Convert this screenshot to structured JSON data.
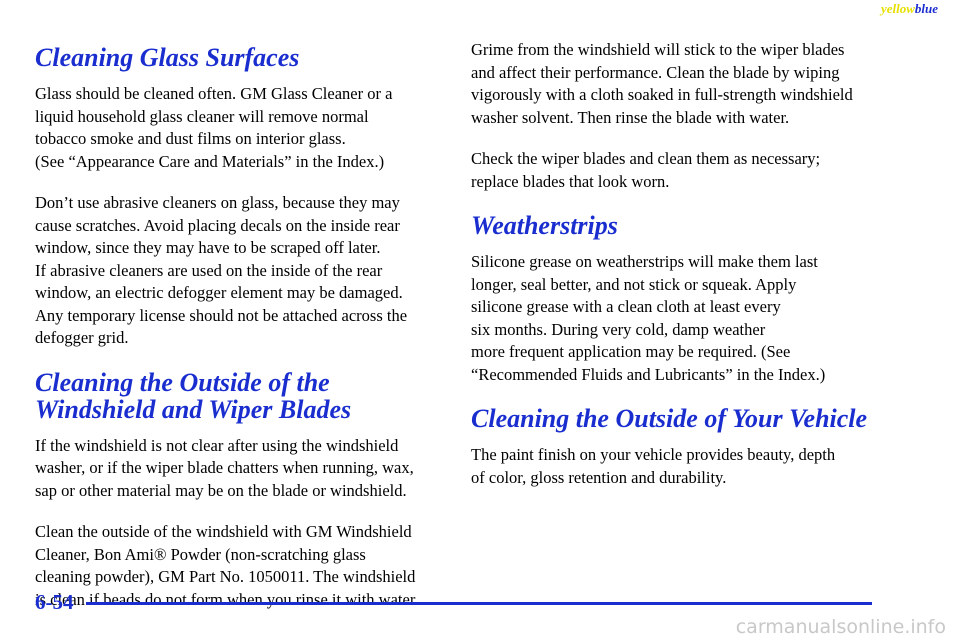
{
  "header": {
    "yellow": "yellow",
    "blue": "blue"
  },
  "left": [
    {
      "heading": [
        "Cleaning Glass Surfaces"
      ]
    },
    {
      "paragraph": [
        "Glass should be cleaned often. GM Glass Cleaner or a",
        "liquid household glass cleaner will remove normal",
        "tobacco smoke and dust films on interior glass.",
        "(See “Appearance Care and Materials” in the Index.)"
      ]
    },
    {
      "paragraph": [
        "Don’t use abrasive cleaners on glass, because they may",
        "cause scratches. Avoid placing decals on the inside rear",
        "window, since they may have to be scraped off later.",
        "If abrasive cleaners are used on the inside of the rear",
        "window, an electric defogger element may be damaged.",
        "Any temporary license should not be attached across the",
        "defogger grid."
      ]
    },
    {
      "heading": [
        "Cleaning the Outside of the",
        "Windshield and Wiper Blades"
      ]
    },
    {
      "paragraph": [
        "If the windshield is not clear after using the windshield",
        "washer, or if the wiper blade chatters when running, wax,",
        "sap or other material may be on the blade or windshield."
      ]
    },
    {
      "paragraph": [
        "Clean the outside of the windshield with GM Windshield",
        "Cleaner, Bon Ami® Powder (non-scratching glass",
        "cleaning powder), GM Part No. 1050011. The windshield",
        "is clean if beads do not form when you rinse it with water."
      ]
    }
  ],
  "right": [
    {
      "paragraph": [
        "Grime from the windshield will stick to the wiper blades",
        "and affect their performance. Clean the blade by wiping",
        "vigorously with a cloth soaked in full-strength windshield",
        "washer solvent. Then rinse the blade with water."
      ]
    },
    {
      "paragraph": [
        "Check the wiper blades and clean them as necessary;",
        "replace blades that look worn."
      ]
    },
    {
      "heading": [
        "Weatherstrips"
      ]
    },
    {
      "paragraph": [
        "Silicone grease on weatherstrips will make them last",
        "longer, seal better, and not stick or squeak. Apply",
        "silicone grease with a clean cloth at least every",
        "six months. During very cold, damp weather",
        "more frequent application may be required. (See",
        "“Recommended Fluids and Lubricants” in the Index.)"
      ]
    },
    {
      "heading": [
        "Cleaning the Outside of Your Vehicle"
      ]
    },
    {
      "paragraph": [
        "The paint finish on your vehicle provides beauty, depth",
        "of color, gloss retention and durability."
      ]
    }
  ],
  "footer": {
    "page": "6-54",
    "watermark": "carmanualsonline.info"
  }
}
